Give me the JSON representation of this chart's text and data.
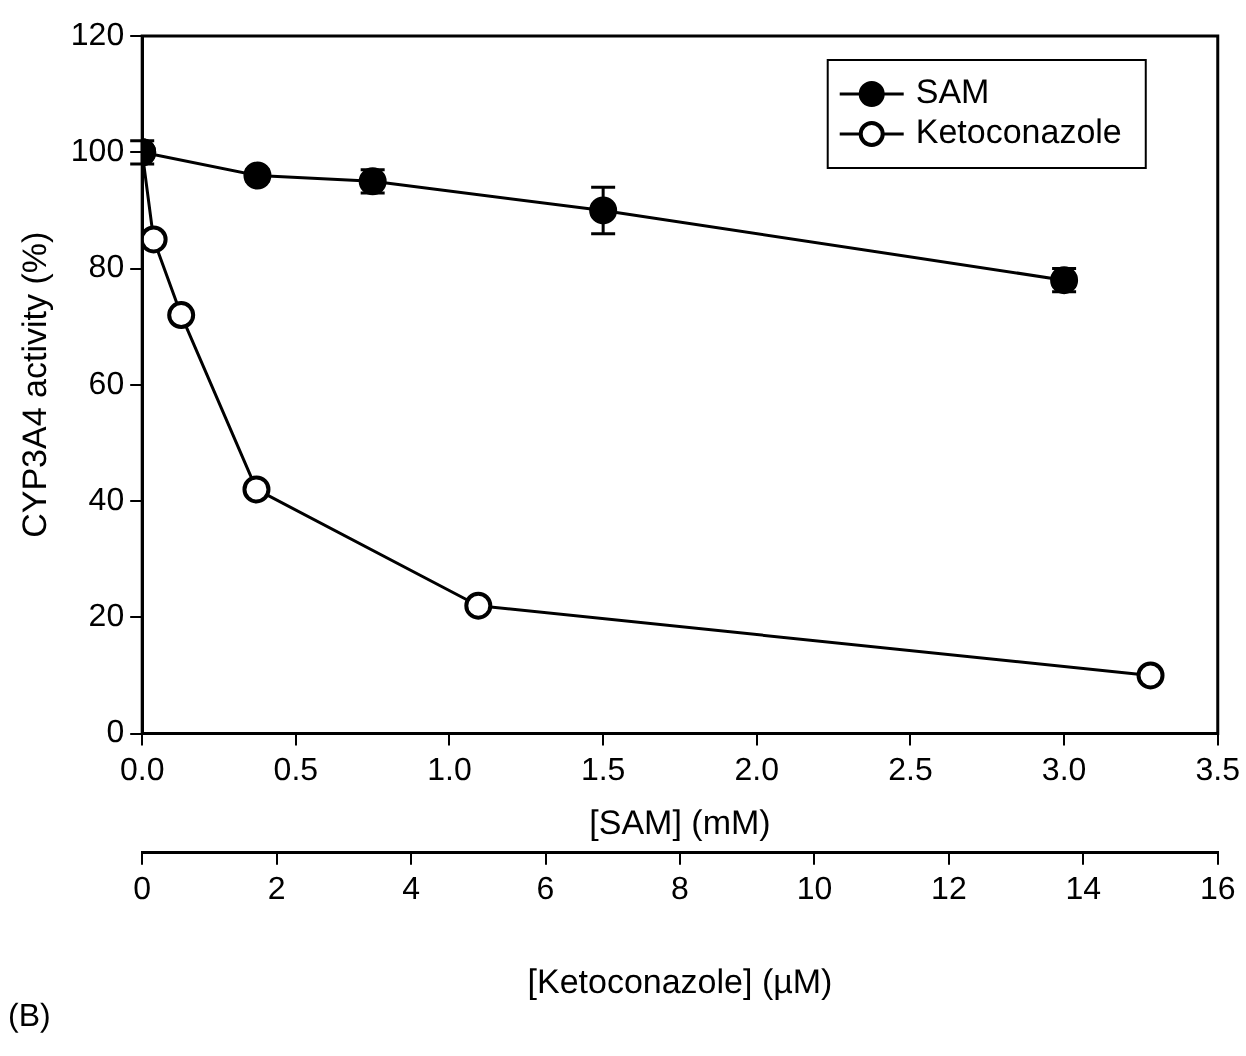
{
  "chart_data": {
    "type": "line",
    "ylabel": "CYP3A4 activity (%)",
    "xlabel": "[SAM] (mM)",
    "x2label": "[Ketoconazole] (µM)",
    "xlim": [
      0,
      3.5
    ],
    "xticks": [
      {
        "value": 0,
        "label": "0.0"
      },
      0.5,
      {
        "value": 1,
        "label": "1.0"
      },
      1.5,
      {
        "value": 2,
        "label": "2.0"
      },
      2.5,
      {
        "value": 3,
        "label": "3.0"
      },
      3.5
    ],
    "x2lim": [
      0,
      16
    ],
    "x2ticks": [
      0,
      2,
      4,
      6,
      8,
      10,
      12,
      14,
      16
    ],
    "ylim": [
      0,
      120
    ],
    "yticks": [
      0,
      20,
      40,
      60,
      80,
      100,
      120
    ],
    "series": [
      {
        "name": "SAM",
        "color": "#000000",
        "x": [
          0,
          0.375,
          0.75,
          1.5,
          3.0
        ],
        "values": [
          100,
          96,
          95,
          90,
          78
        ],
        "errors": [
          2,
          1,
          2,
          4,
          2
        ]
      },
      {
        "name": "Ketoconazole",
        "color": "#000000",
        "axis": "x2",
        "x": [
          0,
          0.17,
          0.58,
          1.7,
          5,
          15
        ],
        "values": [
          100,
          85,
          72,
          42,
          22,
          10
        ]
      }
    ],
    "marker": "circle",
    "line_style": "solid",
    "grid": false,
    "legend": "top right",
    "annotations": [
      "(B)"
    ]
  }
}
